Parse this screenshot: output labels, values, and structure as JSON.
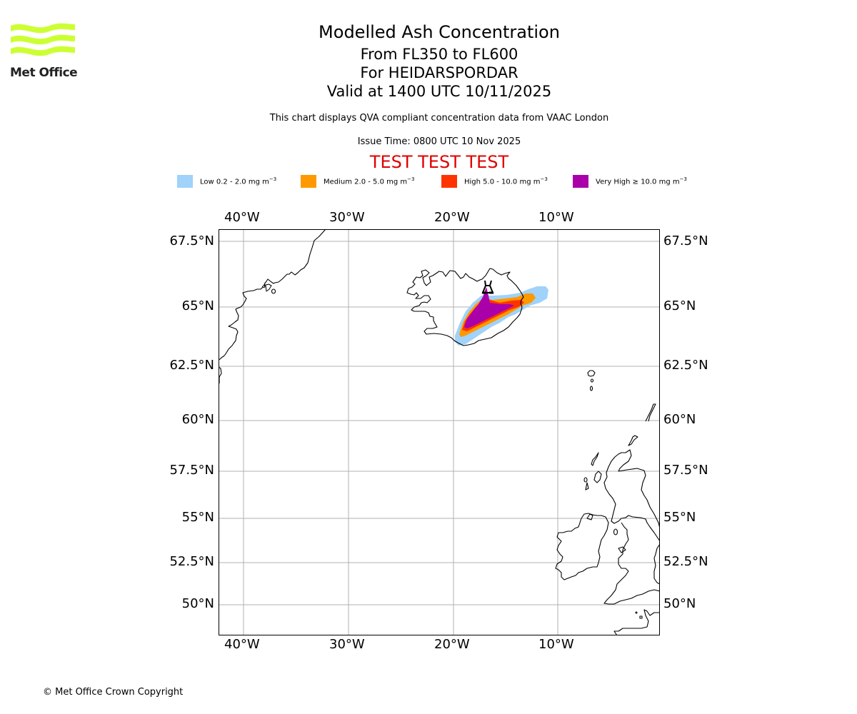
{
  "logo": {
    "text": "Met Office",
    "color": "#ccff33"
  },
  "header": {
    "title": "Modelled Ash Concentration",
    "levels": "From FL350 to FL600",
    "volcano": "For HEIDARSPORDAR",
    "valid": "Valid at 1400 UTC 10/11/2025",
    "description": "This chart displays QVA compliant concentration data from VAAC London",
    "issue_time": "Issue Time: 0800 UTC 10 Nov 2025",
    "test_banner": "TEST TEST TEST",
    "test_color": "#e00000"
  },
  "legend": [
    {
      "label": "Low 0.2 - 2.0 mg m",
      "exp": "−3",
      "color": "#a0d2fa"
    },
    {
      "label": "Medium 2.0 - 5.0 mg m",
      "exp": "−3",
      "color": "#ff9900"
    },
    {
      "label": "High 5.0 - 10.0 mg m",
      "exp": "−3",
      "color": "#ff3300"
    },
    {
      "label": "Very High ≥ 10.0 mg m",
      "exp": "−3",
      "color": "#aa00aa"
    }
  ],
  "map": {
    "lon_ticks": [
      "40°W",
      "30°W",
      "20°W",
      "10°W"
    ],
    "lat_ticks": [
      "67.5°N",
      "65°N",
      "62.5°N",
      "60°N",
      "57.5°N",
      "55°N",
      "52.5°N",
      "50°N"
    ],
    "volcano_marker": "volcano-icon",
    "grid_color": "#b0b0b0"
  },
  "footer": {
    "copyright": "© Met Office Crown Copyright"
  }
}
